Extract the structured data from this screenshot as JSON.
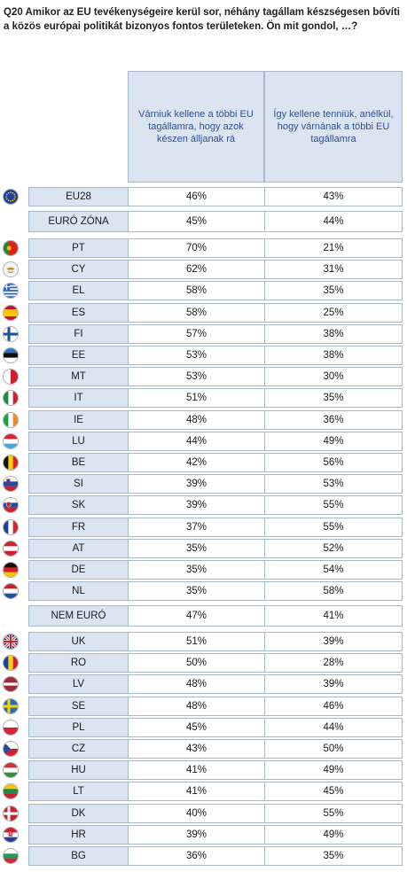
{
  "question": "Q20 Amikor az EU tevékenységeire kerül sor, néhány tagállam készségesen bővíti a közös európai politikát bizonyos fontos területeken. Ön mit gondol, …?",
  "chart_data": {
    "type": "table",
    "columns": [
      "Várniuk kellene a többi EU tagállamra, hogy azok készen álljanak rá",
      "Így kellene tenniük, anélkül, hogy várnának a többi EU tagállamra"
    ],
    "rows": [
      {
        "label": "EU28",
        "values": [
          "46%",
          "43%"
        ],
        "flag": "eu"
      },
      {
        "label": "EURÓ ZÓNA",
        "values": [
          "45%",
          "44%"
        ],
        "flag": ""
      },
      {
        "label": "PT",
        "values": [
          "70%",
          "21%"
        ],
        "flag": "pt"
      },
      {
        "label": "CY",
        "values": [
          "62%",
          "31%"
        ],
        "flag": "cy"
      },
      {
        "label": "EL",
        "values": [
          "58%",
          "35%"
        ],
        "flag": "el"
      },
      {
        "label": "ES",
        "values": [
          "58%",
          "25%"
        ],
        "flag": "es"
      },
      {
        "label": "FI",
        "values": [
          "57%",
          "38%"
        ],
        "flag": "fi"
      },
      {
        "label": "EE",
        "values": [
          "53%",
          "38%"
        ],
        "flag": "ee"
      },
      {
        "label": "MT",
        "values": [
          "53%",
          "30%"
        ],
        "flag": "mt"
      },
      {
        "label": "IT",
        "values": [
          "51%",
          "35%"
        ],
        "flag": "it"
      },
      {
        "label": "IE",
        "values": [
          "48%",
          "36%"
        ],
        "flag": "ie"
      },
      {
        "label": "LU",
        "values": [
          "44%",
          "49%"
        ],
        "flag": "lu"
      },
      {
        "label": "BE",
        "values": [
          "42%",
          "56%"
        ],
        "flag": "be"
      },
      {
        "label": "SI",
        "values": [
          "39%",
          "53%"
        ],
        "flag": "si"
      },
      {
        "label": "SK",
        "values": [
          "39%",
          "55%"
        ],
        "flag": "sk"
      },
      {
        "label": "FR",
        "values": [
          "37%",
          "55%"
        ],
        "flag": "fr"
      },
      {
        "label": "AT",
        "values": [
          "35%",
          "52%"
        ],
        "flag": "at"
      },
      {
        "label": "DE",
        "values": [
          "35%",
          "54%"
        ],
        "flag": "de"
      },
      {
        "label": "NL",
        "values": [
          "35%",
          "58%"
        ],
        "flag": "nl"
      },
      {
        "label": "NEM EURÓ",
        "values": [
          "47%",
          "41%"
        ],
        "flag": ""
      },
      {
        "label": "UK",
        "values": [
          "51%",
          "39%"
        ],
        "flag": "uk"
      },
      {
        "label": "RO",
        "values": [
          "50%",
          "28%"
        ],
        "flag": "ro"
      },
      {
        "label": "LV",
        "values": [
          "48%",
          "39%"
        ],
        "flag": "lv"
      },
      {
        "label": "SE",
        "values": [
          "48%",
          "46%"
        ],
        "flag": "se"
      },
      {
        "label": "PL",
        "values": [
          "45%",
          "44%"
        ],
        "flag": "pl"
      },
      {
        "label": "CZ",
        "values": [
          "43%",
          "50%"
        ],
        "flag": "cz"
      },
      {
        "label": "HU",
        "values": [
          "41%",
          "49%"
        ],
        "flag": "hu"
      },
      {
        "label": "LT",
        "values": [
          "41%",
          "45%"
        ],
        "flag": "lt"
      },
      {
        "label": "DK",
        "values": [
          "40%",
          "55%"
        ],
        "flag": "dk"
      },
      {
        "label": "HR",
        "values": [
          "39%",
          "49%"
        ],
        "flag": "hr"
      },
      {
        "label": "BG",
        "values": [
          "36%",
          "35%"
        ],
        "flag": "bg"
      }
    ]
  },
  "colors": {
    "header_bg": "#dbe5f1",
    "header_text": "#2e4f9a",
    "border": "#a6b8cc"
  }
}
